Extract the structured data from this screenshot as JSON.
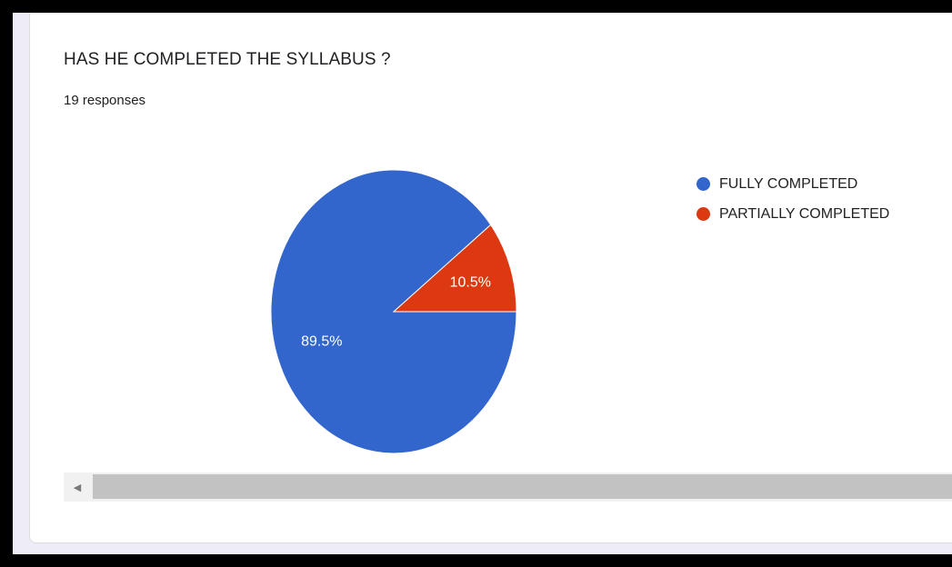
{
  "question": {
    "title": "HAS HE COMPLETED THE SYLLABUS ?",
    "responses": "19 responses"
  },
  "chart_data": {
    "type": "pie",
    "categories": [
      "FULLY COMPLETED",
      "PARTIALLY COMPLETED"
    ],
    "values": [
      89.5,
      10.5
    ],
    "labels": [
      "89.5%",
      "10.5%"
    ],
    "colors": [
      "#3366cc",
      "#dc3912"
    ],
    "legend": "right"
  },
  "scrollbar": {
    "arrow_icon": "left-arrow-icon"
  }
}
